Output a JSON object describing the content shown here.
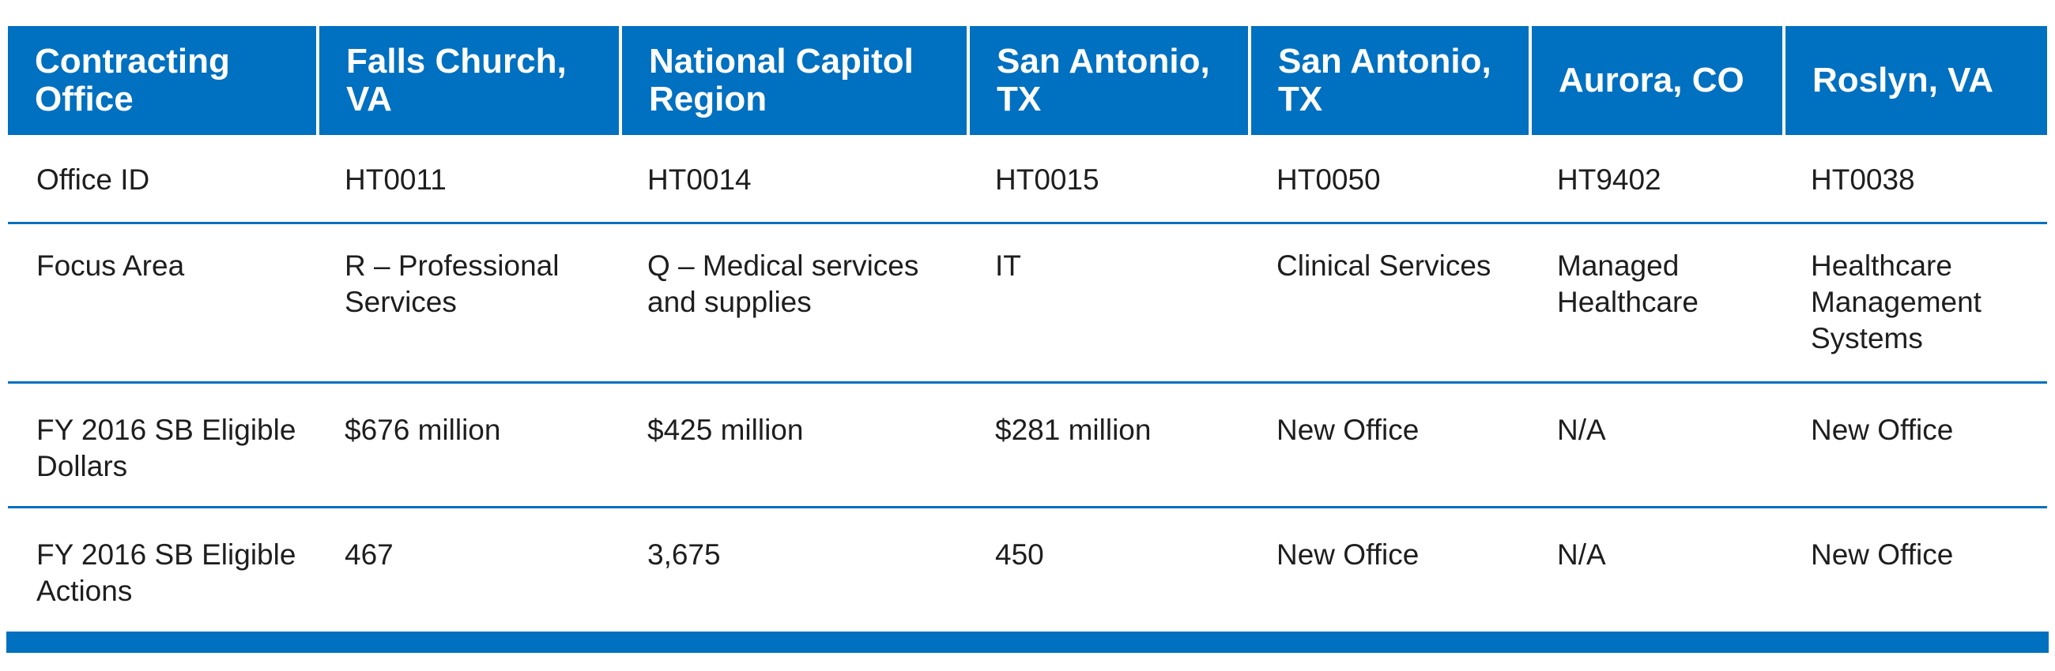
{
  "colors": {
    "header_bg": "#0070c0",
    "header_text": "#ffffff",
    "rule": "#0070c0",
    "body_text": "#1e1e1e"
  },
  "table": {
    "headers": [
      "Contracting Office",
      "Falls Church, VA",
      "National Capitol Region",
      "San Antonio, TX",
      "San Antonio, TX",
      "Aurora, CO",
      "Roslyn, VA"
    ],
    "rows": [
      {
        "label": "Office ID",
        "cells": [
          "HT0011",
          "HT0014",
          "HT0015",
          "HT0050",
          "HT9402",
          "HT0038"
        ]
      },
      {
        "label": "Focus Area",
        "cells": [
          "R – Professional Services",
          "Q – Medical services and supplies",
          "IT",
          "Clinical Services",
          "Managed Healthcare",
          "Healthcare Management Systems"
        ]
      },
      {
        "label": "FY 2016 SB Eligible Dollars",
        "cells": [
          "$676 million",
          "$425 million",
          "$281 million",
          "New Office",
          "N/A",
          "New Office"
        ]
      },
      {
        "label": "FY 2016 SB Eligible Actions",
        "cells": [
          "467",
          "3,675",
          "450",
          "New Office",
          "N/A",
          "New Office"
        ]
      }
    ]
  }
}
